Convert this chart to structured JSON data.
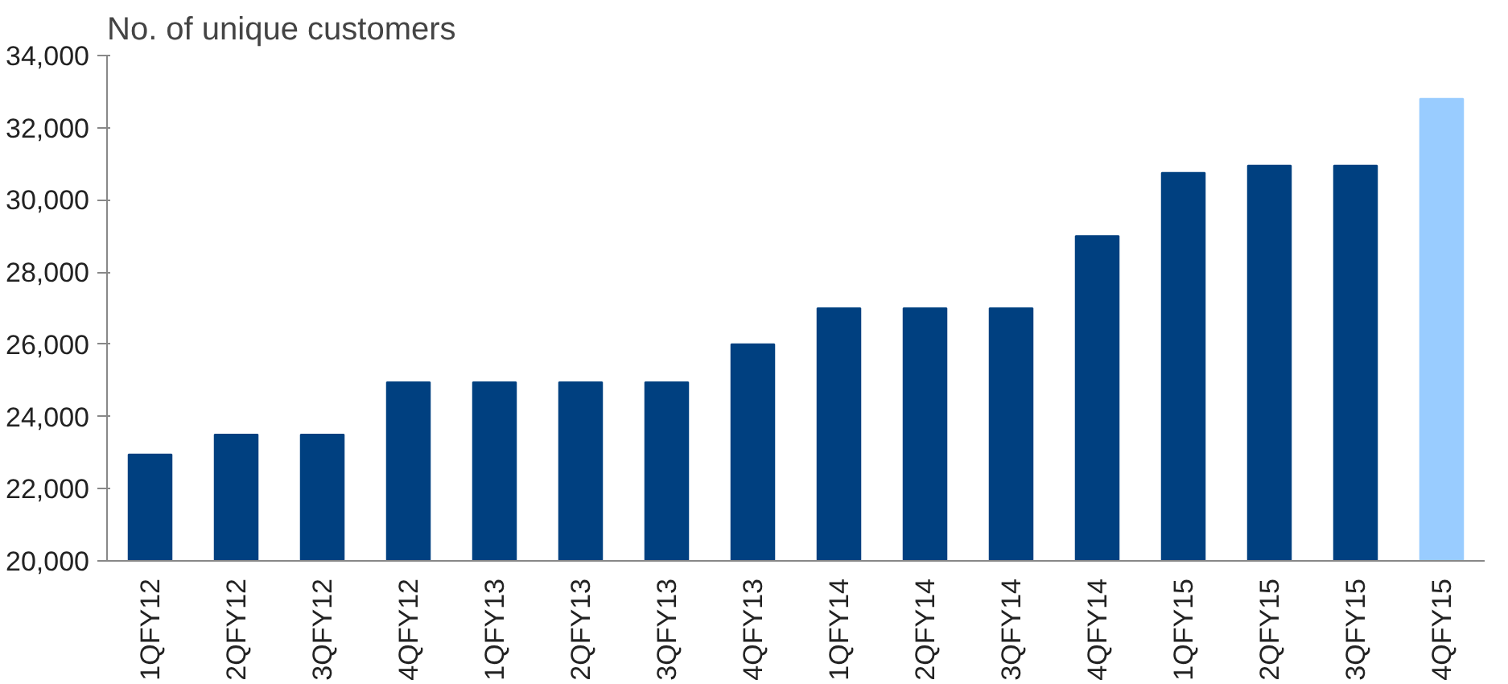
{
  "chart_data": {
    "type": "bar",
    "title": "No. of unique customers",
    "categories": [
      "1QFY12",
      "2QFY12",
      "3QFY12",
      "4QFY12",
      "1QFY13",
      "2QFY13",
      "3QFY13",
      "4QFY13",
      "1QFY14",
      "2QFY14",
      "3QFY14",
      "4QFY14",
      "1QFY15",
      "2QFY15",
      "3QFY15",
      "4QFY15"
    ],
    "values": [
      22950,
      23500,
      23500,
      24950,
      24950,
      24950,
      24950,
      26000,
      27000,
      27000,
      27000,
      29000,
      30750,
      30950,
      30950,
      32800
    ],
    "colors": [
      "#004080",
      "#004080",
      "#004080",
      "#004080",
      "#004080",
      "#004080",
      "#004080",
      "#004080",
      "#004080",
      "#004080",
      "#004080",
      "#004080",
      "#004080",
      "#004080",
      "#004080",
      "#99ccff"
    ],
    "ylim": [
      20000,
      34000
    ],
    "yticks": [
      {
        "value": 20000,
        "label": "20,000"
      },
      {
        "value": 22000,
        "label": "22,000"
      },
      {
        "value": 24000,
        "label": "24,000"
      },
      {
        "value": 26000,
        "label": "26,000"
      },
      {
        "value": 28000,
        "label": "28,000"
      },
      {
        "value": 30000,
        "label": "30,000"
      },
      {
        "value": 32000,
        "label": "32,000"
      },
      {
        "value": 34000,
        "label": "34,000"
      }
    ],
    "grid": false
  }
}
